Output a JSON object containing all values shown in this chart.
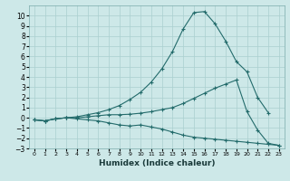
{
  "xlabel": "Humidex (Indice chaleur)",
  "x": [
    0,
    1,
    2,
    3,
    4,
    5,
    6,
    7,
    8,
    9,
    10,
    11,
    12,
    13,
    14,
    15,
    16,
    17,
    18,
    19,
    20,
    21,
    22,
    23
  ],
  "line1": [
    -0.2,
    -0.3,
    -0.1,
    0.0,
    0.1,
    0.3,
    0.5,
    0.8,
    1.2,
    1.8,
    2.5,
    3.5,
    4.8,
    6.5,
    8.7,
    10.3,
    10.4,
    9.2,
    7.5,
    5.5,
    4.5,
    2.0,
    0.5,
    null
  ],
  "line2": [
    -0.2,
    -0.3,
    -0.1,
    0.0,
    0.0,
    0.1,
    0.2,
    0.3,
    0.3,
    0.35,
    0.45,
    0.6,
    0.8,
    1.0,
    1.4,
    1.9,
    2.4,
    2.9,
    3.3,
    3.7,
    0.6,
    -1.2,
    -2.5,
    -2.7
  ],
  "line3": [
    -0.2,
    -0.3,
    -0.1,
    0.0,
    -0.1,
    -0.2,
    -0.3,
    -0.5,
    -0.7,
    -0.8,
    -0.7,
    -0.9,
    -1.1,
    -1.4,
    -1.7,
    -1.9,
    -2.0,
    -2.1,
    -2.2,
    -2.3,
    -2.4,
    -2.5,
    -2.6,
    -2.7
  ],
  "line_color": "#236b6b",
  "bg_color": "#cde8e8",
  "grid_color": "#aacfcf",
  "ylim": [
    -3,
    11
  ],
  "yticks": [
    -3,
    -2,
    -1,
    0,
    1,
    2,
    3,
    4,
    5,
    6,
    7,
    8,
    9,
    10
  ],
  "marker": "+"
}
